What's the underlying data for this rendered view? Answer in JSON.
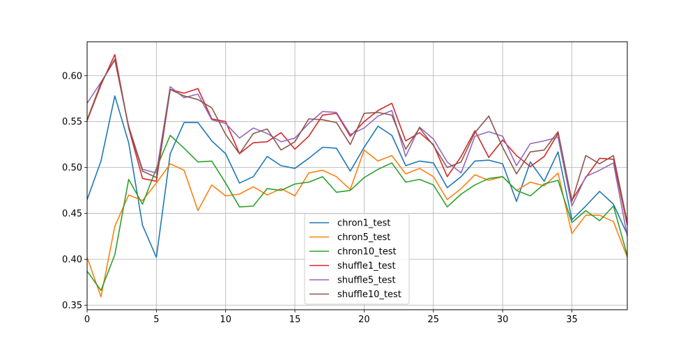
{
  "chart_data": {
    "type": "line",
    "title": "",
    "xlabel": "",
    "ylabel": "",
    "xlim": [
      0,
      39
    ],
    "ylim": [
      0.345,
      0.637
    ],
    "xticks": [
      0,
      5,
      10,
      15,
      20,
      25,
      30,
      35
    ],
    "yticks": [
      0.35,
      0.4,
      0.45,
      0.5,
      0.55,
      0.6
    ],
    "ytick_labels": [
      "0.35",
      "0.40",
      "0.45",
      "0.50",
      "0.55",
      "0.60"
    ],
    "grid": true,
    "legend_position": "lower-center",
    "x": [
      0,
      1,
      2,
      3,
      4,
      5,
      6,
      7,
      8,
      9,
      10,
      11,
      12,
      13,
      14,
      15,
      16,
      17,
      18,
      19,
      20,
      21,
      22,
      23,
      24,
      25,
      26,
      27,
      28,
      29,
      30,
      31,
      32,
      33,
      34,
      35,
      36,
      37,
      38,
      39
    ],
    "series": [
      {
        "name": "chron1_test",
        "color": "#1f77b4",
        "values": [
          0.465,
          0.507,
          0.578,
          0.527,
          0.437,
          0.402,
          0.515,
          0.549,
          0.549,
          0.529,
          0.515,
          0.483,
          0.49,
          0.512,
          0.502,
          0.499,
          0.51,
          0.522,
          0.521,
          0.496,
          0.522,
          0.545,
          0.535,
          0.502,
          0.507,
          0.505,
          0.478,
          0.49,
          0.507,
          0.508,
          0.504,
          0.463,
          0.506,
          0.485,
          0.517,
          0.443,
          0.458,
          0.474,
          0.46,
          0.427
        ]
      },
      {
        "name": "chron5_test",
        "color": "#ff7f0e",
        "values": [
          0.402,
          0.359,
          0.436,
          0.47,
          0.464,
          0.483,
          0.504,
          0.497,
          0.453,
          0.481,
          0.469,
          0.471,
          0.479,
          0.47,
          0.477,
          0.469,
          0.494,
          0.497,
          0.49,
          0.476,
          0.519,
          0.507,
          0.513,
          0.493,
          0.499,
          0.49,
          0.465,
          0.477,
          0.492,
          0.486,
          0.49,
          0.475,
          0.484,
          0.48,
          0.494,
          0.428,
          0.448,
          0.448,
          0.441,
          0.402
        ]
      },
      {
        "name": "chron10_test",
        "color": "#2ca02c",
        "values": [
          0.387,
          0.366,
          0.405,
          0.487,
          0.46,
          0.499,
          0.535,
          0.521,
          0.506,
          0.507,
          0.483,
          0.457,
          0.458,
          0.477,
          0.475,
          0.482,
          0.484,
          0.49,
          0.473,
          0.475,
          0.489,
          0.498,
          0.505,
          0.484,
          0.487,
          0.481,
          0.457,
          0.471,
          0.481,
          0.488,
          0.49,
          0.475,
          0.469,
          0.482,
          0.486,
          0.44,
          0.453,
          0.442,
          0.458,
          0.404
        ]
      },
      {
        "name": "shuffle1_test",
        "color": "#d62728",
        "values": [
          0.551,
          0.59,
          0.623,
          0.543,
          0.488,
          0.485,
          0.585,
          0.581,
          0.586,
          0.553,
          0.55,
          0.515,
          0.527,
          0.528,
          0.538,
          0.52,
          0.534,
          0.557,
          0.559,
          0.534,
          0.55,
          0.562,
          0.57,
          0.529,
          0.538,
          0.525,
          0.49,
          0.512,
          0.54,
          0.511,
          0.53,
          0.513,
          0.501,
          0.512,
          0.537,
          0.464,
          0.489,
          0.51,
          0.509,
          0.437
        ]
      },
      {
        "name": "shuffle5_test",
        "color": "#9467bd",
        "values": [
          0.57,
          0.593,
          0.617,
          0.545,
          0.498,
          0.494,
          0.588,
          0.576,
          0.58,
          0.552,
          0.548,
          0.532,
          0.543,
          0.537,
          0.528,
          0.532,
          0.548,
          0.561,
          0.56,
          0.536,
          0.543,
          0.556,
          0.562,
          0.512,
          0.544,
          0.531,
          0.506,
          0.494,
          0.534,
          0.539,
          0.534,
          0.502,
          0.526,
          0.529,
          0.533,
          0.458,
          0.49,
          0.497,
          0.505,
          0.425
        ]
      },
      {
        "name": "shuffle10_test",
        "color": "#8c564b",
        "values": [
          0.552,
          0.592,
          0.618,
          0.544,
          0.496,
          0.489,
          0.585,
          0.578,
          0.574,
          0.565,
          0.536,
          0.515,
          0.537,
          0.542,
          0.519,
          0.528,
          0.553,
          0.552,
          0.549,
          0.525,
          0.559,
          0.56,
          0.557,
          0.52,
          0.543,
          0.524,
          0.5,
          0.506,
          0.538,
          0.556,
          0.522,
          0.493,
          0.517,
          0.519,
          0.539,
          0.463,
          0.513,
          0.504,
          0.513,
          0.44
        ]
      }
    ]
  }
}
